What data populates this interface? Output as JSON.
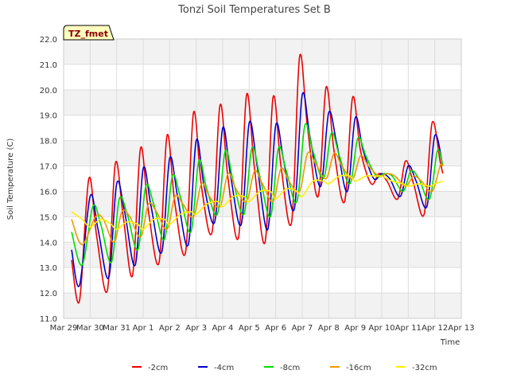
{
  "chart_data": {
    "type": "line",
    "title": "Tonzi Soil Temperatures Set B",
    "xlabel": "Time",
    "ylabel": "Soil Temperature (C)",
    "badge": "TZ_fmet",
    "ylim": [
      11.0,
      22.0
    ],
    "xlim": [
      0,
      15
    ],
    "x_ticks": [
      {
        "x": 0,
        "label": "Mar 29"
      },
      {
        "x": 1,
        "label": "Mar 30"
      },
      {
        "x": 2,
        "label": "Mar 31"
      },
      {
        "x": 3,
        "label": "Apr 1"
      },
      {
        "x": 4,
        "label": "Apr 2"
      },
      {
        "x": 5,
        "label": "Apr 3"
      },
      {
        "x": 6,
        "label": "Apr 4"
      },
      {
        "x": 7,
        "label": "Apr 5"
      },
      {
        "x": 8,
        "label": "Apr 6"
      },
      {
        "x": 9,
        "label": "Apr 7"
      },
      {
        "x": 10,
        "label": "Apr 8"
      },
      {
        "x": 11,
        "label": "Apr 9"
      },
      {
        "x": 12,
        "label": "Apr 10"
      },
      {
        "x": 13,
        "label": "Apr 11"
      },
      {
        "x": 14,
        "label": "Apr 12"
      },
      {
        "x": 15,
        "label": "Apr 13"
      }
    ],
    "y_ticks": [
      "11.0",
      "12.0",
      "13.0",
      "14.0",
      "15.0",
      "16.0",
      "17.0",
      "18.0",
      "19.0",
      "20.0",
      "21.0",
      "22.0"
    ],
    "grid": true,
    "legend_position": "bottom",
    "series": [
      {
        "name": "-2cm",
        "color": "#ee0000",
        "points": [
          [
            0.3,
            13.3
          ],
          [
            0.6,
            11.7
          ],
          [
            0.95,
            16.5
          ],
          [
            1.25,
            14.2
          ],
          [
            1.65,
            12.1
          ],
          [
            1.95,
            17.1
          ],
          [
            2.25,
            15.0
          ],
          [
            2.6,
            12.7
          ],
          [
            2.9,
            17.7
          ],
          [
            3.2,
            15.2
          ],
          [
            3.6,
            13.2
          ],
          [
            3.9,
            18.2
          ],
          [
            4.2,
            15.5
          ],
          [
            4.6,
            13.6
          ],
          [
            4.9,
            19.1
          ],
          [
            5.2,
            16.2
          ],
          [
            5.6,
            14.4
          ],
          [
            5.9,
            19.4
          ],
          [
            6.2,
            16.5
          ],
          [
            6.6,
            14.2
          ],
          [
            6.9,
            19.8
          ],
          [
            7.2,
            16.9
          ],
          [
            7.6,
            14.0
          ],
          [
            7.9,
            19.7
          ],
          [
            8.2,
            17.0
          ],
          [
            8.6,
            14.8
          ],
          [
            8.9,
            21.3
          ],
          [
            9.2,
            18.5
          ],
          [
            9.6,
            15.8
          ],
          [
            9.9,
            20.1
          ],
          [
            10.2,
            17.6
          ],
          [
            10.6,
            15.6
          ],
          [
            10.9,
            19.7
          ],
          [
            11.2,
            17.6
          ],
          [
            11.6,
            16.3
          ],
          [
            11.9,
            16.7
          ],
          [
            12.2,
            16.4
          ],
          [
            12.6,
            15.7
          ],
          [
            12.9,
            17.2
          ],
          [
            13.2,
            16.3
          ],
          [
            13.6,
            15.1
          ],
          [
            13.9,
            18.7
          ],
          [
            14.2,
            17.2
          ],
          [
            14.3,
            16.7
          ]
        ]
      },
      {
        "name": "-4cm",
        "color": "#0000cc",
        "points": [
          [
            0.3,
            13.7
          ],
          [
            0.6,
            12.3
          ],
          [
            1.0,
            15.8
          ],
          [
            1.3,
            14.5
          ],
          [
            1.7,
            12.6
          ],
          [
            2.0,
            16.3
          ],
          [
            2.3,
            15.2
          ],
          [
            2.7,
            13.1
          ],
          [
            3.0,
            16.9
          ],
          [
            3.3,
            15.4
          ],
          [
            3.7,
            13.6
          ],
          [
            4.0,
            17.3
          ],
          [
            4.3,
            15.8
          ],
          [
            4.7,
            13.9
          ],
          [
            5.0,
            18.0
          ],
          [
            5.3,
            16.2
          ],
          [
            5.7,
            14.8
          ],
          [
            6.0,
            18.5
          ],
          [
            6.3,
            16.6
          ],
          [
            6.7,
            14.7
          ],
          [
            7.0,
            18.7
          ],
          [
            7.3,
            17.0
          ],
          [
            7.7,
            14.5
          ],
          [
            8.0,
            18.6
          ],
          [
            8.3,
            17.2
          ],
          [
            8.7,
            15.3
          ],
          [
            9.0,
            19.8
          ],
          [
            9.3,
            18.1
          ],
          [
            9.7,
            16.2
          ],
          [
            10.0,
            19.1
          ],
          [
            10.3,
            17.9
          ],
          [
            10.7,
            16.0
          ],
          [
            11.0,
            18.9
          ],
          [
            11.3,
            17.6
          ],
          [
            11.7,
            16.5
          ],
          [
            12.0,
            16.7
          ],
          [
            12.3,
            16.5
          ],
          [
            12.7,
            15.8
          ],
          [
            13.0,
            17.0
          ],
          [
            13.3,
            16.4
          ],
          [
            13.7,
            15.4
          ],
          [
            14.0,
            18.2
          ],
          [
            14.3,
            17.0
          ]
        ]
      },
      {
        "name": "-8cm",
        "color": "#00dd00",
        "points": [
          [
            0.3,
            14.4
          ],
          [
            0.7,
            13.1
          ],
          [
            1.1,
            15.4
          ],
          [
            1.4,
            14.7
          ],
          [
            1.8,
            13.2
          ],
          [
            2.1,
            15.7
          ],
          [
            2.4,
            15.1
          ],
          [
            2.8,
            13.7
          ],
          [
            3.1,
            16.2
          ],
          [
            3.4,
            15.5
          ],
          [
            3.8,
            14.1
          ],
          [
            4.1,
            16.6
          ],
          [
            4.4,
            15.8
          ],
          [
            4.8,
            14.4
          ],
          [
            5.1,
            17.2
          ],
          [
            5.4,
            16.1
          ],
          [
            5.8,
            15.1
          ],
          [
            6.1,
            17.6
          ],
          [
            6.4,
            16.4
          ],
          [
            6.8,
            15.1
          ],
          [
            7.1,
            17.7
          ],
          [
            7.4,
            16.6
          ],
          [
            7.8,
            15.0
          ],
          [
            8.1,
            17.7
          ],
          [
            8.4,
            16.8
          ],
          [
            8.8,
            15.6
          ],
          [
            9.1,
            18.6
          ],
          [
            9.4,
            17.6
          ],
          [
            9.8,
            16.5
          ],
          [
            10.1,
            18.3
          ],
          [
            10.4,
            17.4
          ],
          [
            10.8,
            16.3
          ],
          [
            11.1,
            18.1
          ],
          [
            11.4,
            17.4
          ],
          [
            11.8,
            16.6
          ],
          [
            12.1,
            16.7
          ],
          [
            12.4,
            16.6
          ],
          [
            12.8,
            16.0
          ],
          [
            13.1,
            16.8
          ],
          [
            13.4,
            16.5
          ],
          [
            13.8,
            15.7
          ],
          [
            14.1,
            17.6
          ],
          [
            14.3,
            17.0
          ]
        ]
      },
      {
        "name": "-16cm",
        "color": "#ee9900",
        "points": [
          [
            0.3,
            14.9
          ],
          [
            0.7,
            13.9
          ],
          [
            1.2,
            15.0
          ],
          [
            1.5,
            14.9
          ],
          [
            1.9,
            14.0
          ],
          [
            2.2,
            15.2
          ],
          [
            2.5,
            15.0
          ],
          [
            2.9,
            14.2
          ],
          [
            3.2,
            15.5
          ],
          [
            3.5,
            15.2
          ],
          [
            3.9,
            14.5
          ],
          [
            4.2,
            15.8
          ],
          [
            4.5,
            15.5
          ],
          [
            4.9,
            15.0
          ],
          [
            5.2,
            16.3
          ],
          [
            5.5,
            15.8
          ],
          [
            5.9,
            15.4
          ],
          [
            6.2,
            16.7
          ],
          [
            6.5,
            16.1
          ],
          [
            6.9,
            15.6
          ],
          [
            7.2,
            16.8
          ],
          [
            7.5,
            16.3
          ],
          [
            7.9,
            15.6
          ],
          [
            8.2,
            16.9
          ],
          [
            8.5,
            16.4
          ],
          [
            8.9,
            16.0
          ],
          [
            9.2,
            17.5
          ],
          [
            9.5,
            17.1
          ],
          [
            9.9,
            16.5
          ],
          [
            10.2,
            17.5
          ],
          [
            10.5,
            17.0
          ],
          [
            10.9,
            16.5
          ],
          [
            11.2,
            17.4
          ],
          [
            11.5,
            17.0
          ],
          [
            11.9,
            16.6
          ],
          [
            12.2,
            16.7
          ],
          [
            12.5,
            16.6
          ],
          [
            12.9,
            16.2
          ],
          [
            13.2,
            16.6
          ],
          [
            13.5,
            16.4
          ],
          [
            13.9,
            16.0
          ],
          [
            14.2,
            17.0
          ],
          [
            14.3,
            17.0
          ]
        ]
      },
      {
        "name": "-32cm",
        "color": "#ffee00",
        "points": [
          [
            0.3,
            15.2
          ],
          [
            0.7,
            14.9
          ],
          [
            1.0,
            14.6
          ],
          [
            1.4,
            14.9
          ],
          [
            1.8,
            14.7
          ],
          [
            2.0,
            14.5
          ],
          [
            2.4,
            14.8
          ],
          [
            2.8,
            14.7
          ],
          [
            3.0,
            14.5
          ],
          [
            3.4,
            14.9
          ],
          [
            3.8,
            14.9
          ],
          [
            4.0,
            14.7
          ],
          [
            4.4,
            15.1
          ],
          [
            4.8,
            15.2
          ],
          [
            5.0,
            15.1
          ],
          [
            5.4,
            15.5
          ],
          [
            5.8,
            15.6
          ],
          [
            6.0,
            15.4
          ],
          [
            6.4,
            15.8
          ],
          [
            6.8,
            15.8
          ],
          [
            7.0,
            15.6
          ],
          [
            7.4,
            16.0
          ],
          [
            7.8,
            16.0
          ],
          [
            8.0,
            15.7
          ],
          [
            8.4,
            16.1
          ],
          [
            8.8,
            16.0
          ],
          [
            9.0,
            15.8
          ],
          [
            9.4,
            16.4
          ],
          [
            9.8,
            16.4
          ],
          [
            10.0,
            16.3
          ],
          [
            10.4,
            16.6
          ],
          [
            10.8,
            16.6
          ],
          [
            11.0,
            16.4
          ],
          [
            11.4,
            16.6
          ],
          [
            11.8,
            16.6
          ],
          [
            12.0,
            16.6
          ],
          [
            12.4,
            16.4
          ],
          [
            12.8,
            16.3
          ],
          [
            13.0,
            16.2
          ],
          [
            13.4,
            16.3
          ],
          [
            13.8,
            16.2
          ],
          [
            14.0,
            16.3
          ],
          [
            14.3,
            16.4
          ]
        ]
      }
    ]
  }
}
